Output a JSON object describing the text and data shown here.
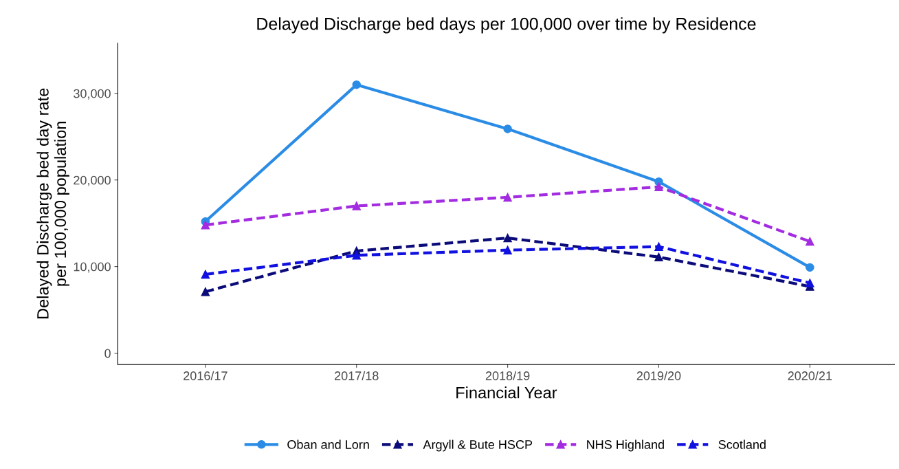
{
  "chart_data": {
    "type": "line",
    "title": "Delayed Discharge bed days per 100,000 over time by Residence",
    "xlabel": "Financial Year",
    "ylabel": "Delayed Discharge bed day rate\nper 100,000 population",
    "categories": [
      "2016/17",
      "2017/18",
      "2018/19",
      "2019/20",
      "2020/21"
    ],
    "series": [
      {
        "name": "Oban and Lorn",
        "color": "#2b8ce6",
        "values": [
          15200,
          31000,
          25900,
          19800,
          9900
        ],
        "marker": "circle",
        "line_style": "solid"
      },
      {
        "name": "Argyll & Bute HSCP",
        "color": "#0b0b7a",
        "values": [
          7100,
          11800,
          13300,
          11100,
          7700
        ],
        "marker": "triangle",
        "line_style": "dashed"
      },
      {
        "name": "NHS Highland",
        "color": "#a32be0",
        "values": [
          14800,
          17000,
          18000,
          19200,
          12900
        ],
        "marker": "triangle",
        "line_style": "dashed"
      },
      {
        "name": "Scotland",
        "color": "#1010e0",
        "values": [
          9100,
          11300,
          11900,
          12300,
          8100
        ],
        "marker": "triangle",
        "line_style": "dashed"
      }
    ],
    "ylim": [
      -1300,
      35800
    ],
    "yticks": [
      {
        "value": 0,
        "label": "0"
      },
      {
        "value": 10000,
        "label": "10,000"
      },
      {
        "value": 20000,
        "label": "20,000"
      },
      {
        "value": 30000,
        "label": "30,000"
      }
    ],
    "grid": false,
    "legend": "bottom"
  }
}
